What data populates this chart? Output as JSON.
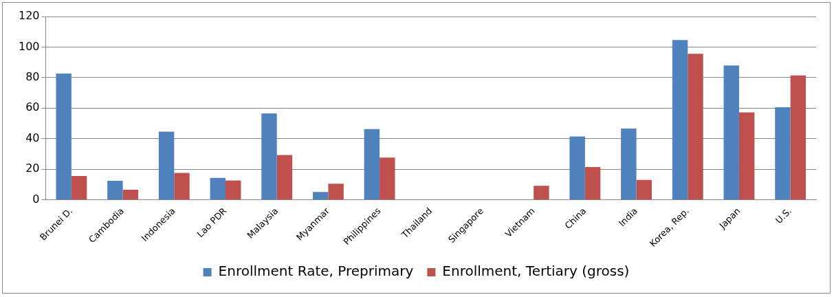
{
  "chart_data": {
    "type": "bar",
    "categories": [
      "Brunei D.",
      "Cambodia",
      "Indonesia",
      "Lao PDR",
      "Malaysia",
      "Myanmar",
      "Philippines",
      "Thailand",
      "Singapore",
      "Vietnam",
      "China",
      "India",
      "Korea, Rep.",
      "Japan",
      "U.S."
    ],
    "series": [
      {
        "name": "Enrollment Rate, Preprimary",
        "color": "#4f81bd",
        "values": [
          82.7,
          12.4,
          44.6,
          14.4,
          56.6,
          5.1,
          46.3,
          null,
          null,
          null,
          41.5,
          46.6,
          104.6,
          87.9,
          60.6
        ]
      },
      {
        "name": "Enrollment, Tertiary (gross)",
        "color": "#c0504d",
        "values": [
          15.6,
          6.6,
          17.6,
          12.7,
          29.3,
          10.5,
          27.6,
          null,
          null,
          9.2,
          21.5,
          13,
          95.6,
          57.2,
          81.4
        ]
      }
    ],
    "ylim": [
      0,
      120
    ],
    "yticks": [
      0,
      20,
      40,
      60,
      80,
      100,
      120
    ],
    "grid": "y",
    "legend": "bottom"
  }
}
